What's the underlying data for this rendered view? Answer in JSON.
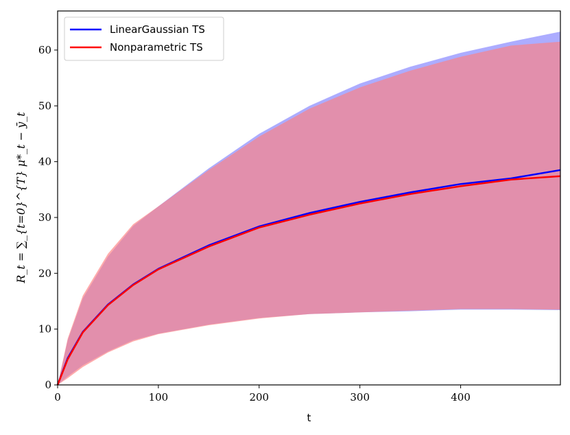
{
  "chart_data": {
    "type": "line",
    "xlabel": "t",
    "ylabel": "R_t = ∑_{t=0}^{T} μ*_t − ȳ_t",
    "xlim": [
      0,
      499
    ],
    "ylim": [
      0,
      67
    ],
    "xticks": [
      0,
      100,
      200,
      300,
      400
    ],
    "yticks": [
      0,
      10,
      20,
      30,
      40,
      50,
      60
    ],
    "grid": false,
    "legend_position": "top-left",
    "x": [
      0,
      10,
      25,
      50,
      75,
      100,
      150,
      200,
      250,
      300,
      350,
      400,
      450,
      499
    ],
    "series": [
      {
        "name": "LinearGaussian TS",
        "color": "#0000ff",
        "band_color": "#7f7fff",
        "mean": [
          0,
          4.8,
          9.5,
          14.4,
          18.0,
          20.8,
          25.0,
          28.4,
          30.8,
          32.8,
          34.5,
          36.0,
          37.0,
          38.5
        ],
        "upper": [
          0,
          8.0,
          15.5,
          23.0,
          28.5,
          32.0,
          38.8,
          45.0,
          50.0,
          54.0,
          57.0,
          59.5,
          61.5,
          63.3
        ],
        "lower": [
          0,
          1.5,
          3.5,
          6.0,
          8.0,
          9.2,
          10.8,
          12.0,
          12.7,
          13.0,
          13.2,
          13.5,
          13.5,
          13.4
        ]
      },
      {
        "name": "Nonparametric TS",
        "color": "#ff0000",
        "band_color": "#ff7f7f",
        "mean": [
          0,
          4.6,
          9.4,
          14.3,
          17.9,
          20.7,
          24.8,
          28.2,
          30.5,
          32.5,
          34.2,
          35.6,
          36.8,
          37.4
        ],
        "upper": [
          0,
          8.3,
          16.0,
          23.5,
          28.8,
          32.0,
          38.5,
          44.5,
          49.5,
          53.3,
          56.3,
          58.8,
          60.8,
          61.5
        ],
        "lower": [
          0,
          1.2,
          3.2,
          5.8,
          7.8,
          9.1,
          10.7,
          11.9,
          12.7,
          13.0,
          13.3,
          13.6,
          13.6,
          13.5
        ]
      }
    ]
  }
}
